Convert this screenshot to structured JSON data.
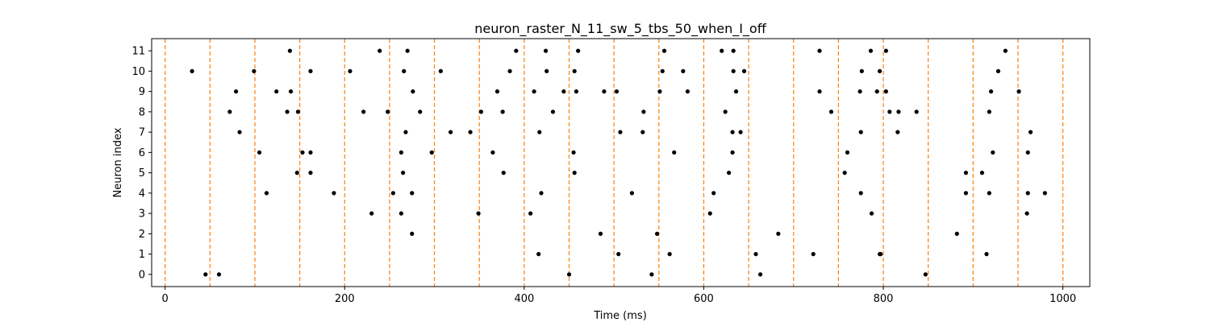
{
  "chart_data": {
    "type": "scatter",
    "title": "neuron_raster_N_11_sw_5_tbs_50_when_I_off",
    "xlabel": "Time (ms)",
    "ylabel": "Neuron index",
    "xlim": [
      -15,
      1030
    ],
    "ylim": [
      -0.6,
      11.6
    ],
    "xticks": [
      0,
      200,
      400,
      600,
      800,
      1000
    ],
    "yticks": [
      0,
      1,
      2,
      3,
      4,
      5,
      6,
      7,
      8,
      9,
      10,
      11
    ],
    "grid": false,
    "marker_color": "#000000",
    "vline_color": "#ff7f0e",
    "vline_style": "dashed",
    "vlines": [
      0,
      50,
      100,
      150,
      200,
      250,
      300,
      350,
      400,
      450,
      500,
      550,
      600,
      650,
      700,
      750,
      800,
      850,
      900,
      950,
      1000
    ],
    "spikes": [
      [
        45,
        0
      ],
      [
        60,
        0
      ],
      [
        450,
        0
      ],
      [
        542,
        0
      ],
      [
        663,
        0
      ],
      [
        847,
        0
      ],
      [
        416,
        1
      ],
      [
        505,
        1
      ],
      [
        562,
        1
      ],
      [
        658,
        1
      ],
      [
        722,
        1
      ],
      [
        796,
        1
      ],
      [
        797,
        1
      ],
      [
        915,
        1
      ],
      [
        275,
        2
      ],
      [
        485,
        2
      ],
      [
        548,
        2
      ],
      [
        683,
        2
      ],
      [
        882,
        2
      ],
      [
        230,
        3
      ],
      [
        263,
        3
      ],
      [
        349,
        3
      ],
      [
        407,
        3
      ],
      [
        607,
        3
      ],
      [
        787,
        3
      ],
      [
        960,
        3
      ],
      [
        113,
        4
      ],
      [
        188,
        4
      ],
      [
        254,
        4
      ],
      [
        275,
        4
      ],
      [
        419,
        4
      ],
      [
        520,
        4
      ],
      [
        611,
        4
      ],
      [
        775,
        4
      ],
      [
        892,
        4
      ],
      [
        918,
        4
      ],
      [
        961,
        4
      ],
      [
        980,
        4
      ],
      [
        147,
        5
      ],
      [
        162,
        5
      ],
      [
        265,
        5
      ],
      [
        377,
        5
      ],
      [
        456,
        5
      ],
      [
        628,
        5
      ],
      [
        757,
        5
      ],
      [
        892,
        5
      ],
      [
        910,
        5
      ],
      [
        105,
        6
      ],
      [
        153,
        6
      ],
      [
        162,
        6
      ],
      [
        263,
        6
      ],
      [
        297,
        6
      ],
      [
        365,
        6
      ],
      [
        455,
        6
      ],
      [
        567,
        6
      ],
      [
        632,
        6
      ],
      [
        760,
        6
      ],
      [
        922,
        6
      ],
      [
        961,
        6
      ],
      [
        83,
        7
      ],
      [
        268,
        7
      ],
      [
        318,
        7
      ],
      [
        340,
        7
      ],
      [
        417,
        7
      ],
      [
        507,
        7
      ],
      [
        532,
        7
      ],
      [
        632,
        7
      ],
      [
        641,
        7
      ],
      [
        775,
        7
      ],
      [
        816,
        7
      ],
      [
        964,
        7
      ],
      [
        72,
        8
      ],
      [
        136,
        8
      ],
      [
        148,
        8
      ],
      [
        221,
        8
      ],
      [
        248,
        8
      ],
      [
        284,
        8
      ],
      [
        352,
        8
      ],
      [
        376,
        8
      ],
      [
        432,
        8
      ],
      [
        533,
        8
      ],
      [
        624,
        8
      ],
      [
        742,
        8
      ],
      [
        807,
        8
      ],
      [
        817,
        8
      ],
      [
        837,
        8
      ],
      [
        918,
        8
      ],
      [
        79,
        9
      ],
      [
        124,
        9
      ],
      [
        140,
        9
      ],
      [
        276,
        9
      ],
      [
        370,
        9
      ],
      [
        411,
        9
      ],
      [
        444,
        9
      ],
      [
        458,
        9
      ],
      [
        489,
        9
      ],
      [
        503,
        9
      ],
      [
        551,
        9
      ],
      [
        582,
        9
      ],
      [
        636,
        9
      ],
      [
        729,
        9
      ],
      [
        774,
        9
      ],
      [
        793,
        9
      ],
      [
        803,
        9
      ],
      [
        920,
        9
      ],
      [
        951,
        9
      ],
      [
        30,
        10
      ],
      [
        99,
        10
      ],
      [
        162,
        10
      ],
      [
        206,
        10
      ],
      [
        266,
        10
      ],
      [
        307,
        10
      ],
      [
        384,
        10
      ],
      [
        425,
        10
      ],
      [
        456,
        10
      ],
      [
        554,
        10
      ],
      [
        577,
        10
      ],
      [
        633,
        10
      ],
      [
        645,
        10
      ],
      [
        776,
        10
      ],
      [
        796,
        10
      ],
      [
        928,
        10
      ],
      [
        139,
        11
      ],
      [
        239,
        11
      ],
      [
        270,
        11
      ],
      [
        391,
        11
      ],
      [
        424,
        11
      ],
      [
        460,
        11
      ],
      [
        556,
        11
      ],
      [
        620,
        11
      ],
      [
        633,
        11
      ],
      [
        729,
        11
      ],
      [
        786,
        11
      ],
      [
        803,
        11
      ],
      [
        936,
        11
      ]
    ]
  }
}
